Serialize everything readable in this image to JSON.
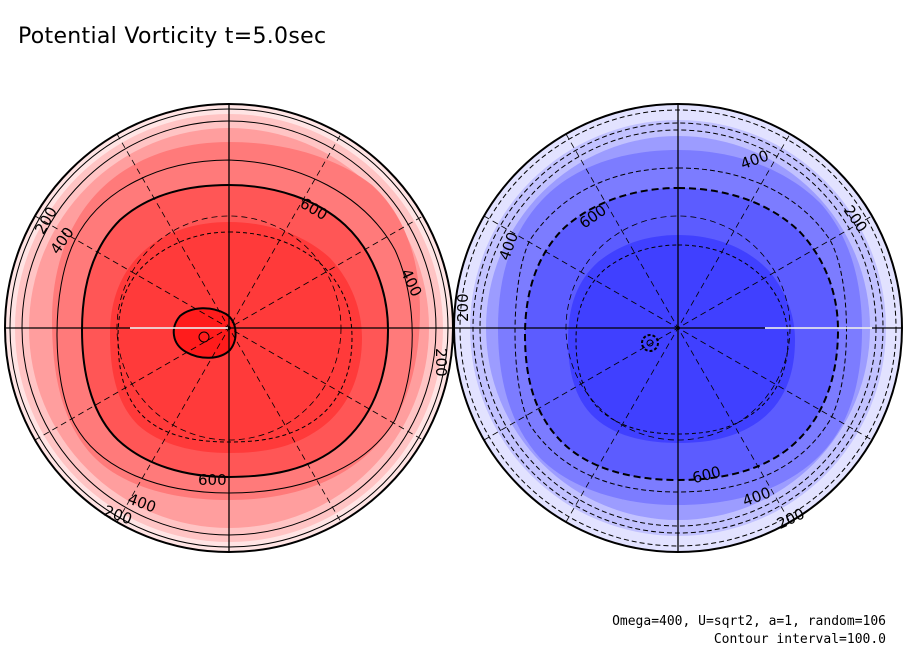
{
  "title": "Potential Vorticity t=5.0sec",
  "footer": {
    "params": "Omega=400, U=sqrt2, a=1, random=106",
    "contour": "Contour interval=100.0"
  },
  "colors": {
    "north": [
      "#ffe4e4",
      "#ffc4c4",
      "#ff9e9e",
      "#ff7a7a",
      "#ff5656",
      "#ff3a3a",
      "#ff1c1c"
    ],
    "south": [
      "#e2e2ff",
      "#c2c2ff",
      "#9c9cff",
      "#7c7cff",
      "#5c5cff",
      "#4040ff",
      "#2020ff"
    ]
  },
  "north_labels": [
    "200",
    "400",
    "600",
    "400",
    "200",
    "600",
    "400",
    "200"
  ],
  "south_labels": [
    "400",
    "600",
    "400",
    "200",
    "200",
    "600",
    "400",
    "200"
  ]
}
